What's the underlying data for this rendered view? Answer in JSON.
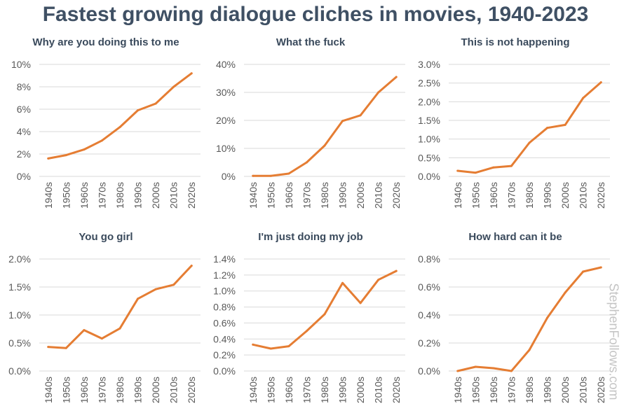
{
  "title": "Fastest growing dialogue cliches in movies, 1940-2023",
  "watermark": "StephenFollows.com",
  "colors": {
    "line": "#e57d33",
    "grid": "#d9d9d9",
    "title": "#3f5064",
    "text": "#595959"
  },
  "chart_data": [
    {
      "type": "line",
      "title": "Why are you doing this to me",
      "categories": [
        "1940s",
        "1950s",
        "1960s",
        "1970s",
        "1980s",
        "1990s",
        "2000s",
        "2010s",
        "2020s"
      ],
      "values": [
        1.6,
        1.9,
        2.4,
        3.2,
        4.4,
        5.9,
        6.5,
        8.0,
        9.2
      ],
      "ylim": [
        0,
        10
      ],
      "ytick_labels": [
        "0%",
        "2%",
        "4%",
        "6%",
        "8%",
        "10%"
      ],
      "grid": true
    },
    {
      "type": "line",
      "title": "What the fuck",
      "categories": [
        "1940s",
        "1950s",
        "1960s",
        "1970s",
        "1980s",
        "1990s",
        "2000s",
        "2010s",
        "2020s"
      ],
      "values": [
        0.2,
        0.2,
        1.0,
        5.0,
        11.0,
        19.8,
        21.8,
        30.0,
        35.5
      ],
      "ylim": [
        0,
        40
      ],
      "ytick_labels": [
        "0%",
        "10%",
        "20%",
        "30%",
        "40%"
      ],
      "grid": true
    },
    {
      "type": "line",
      "title": "This is not happening",
      "categories": [
        "1940s",
        "1950s",
        "1960s",
        "1970s",
        "1980s",
        "1990s",
        "2000s",
        "2010s",
        "2020s"
      ],
      "values": [
        0.15,
        0.1,
        0.24,
        0.28,
        0.9,
        1.3,
        1.38,
        2.1,
        2.52
      ],
      "ylim": [
        0,
        3
      ],
      "ytick_labels": [
        "0.0%",
        "0.5%",
        "1.0%",
        "1.5%",
        "2.0%",
        "2.5%",
        "3.0%"
      ],
      "grid": true
    },
    {
      "type": "line",
      "title": "You go girl",
      "categories": [
        "1940s",
        "1950s",
        "1960s",
        "1970s",
        "1980s",
        "1990s",
        "2000s",
        "2010s",
        "2020s"
      ],
      "values": [
        0.43,
        0.41,
        0.73,
        0.58,
        0.76,
        1.29,
        1.46,
        1.54,
        1.88
      ],
      "ylim": [
        0,
        2
      ],
      "ytick_labels": [
        "0.0%",
        "0.5%",
        "1.0%",
        "1.5%",
        "2.0%"
      ],
      "grid": true
    },
    {
      "type": "line",
      "title": "I'm just doing my job",
      "categories": [
        "1940s",
        "1950s",
        "1960s",
        "1970s",
        "1980s",
        "1990s",
        "2000s",
        "2010s",
        "2020s"
      ],
      "values": [
        0.33,
        0.28,
        0.31,
        0.5,
        0.71,
        1.1,
        0.85,
        1.14,
        1.25
      ],
      "ylim": [
        0,
        1.4
      ],
      "ytick_labels": [
        "0.0%",
        "0.2%",
        "0.4%",
        "0.6%",
        "0.8%",
        "1.0%",
        "1.2%",
        "1.4%"
      ],
      "grid": true
    },
    {
      "type": "line",
      "title": "How hard can it be",
      "categories": [
        "1940s",
        "1950s",
        "1960s",
        "1970s",
        "1980s",
        "1990s",
        "2000s",
        "2010s",
        "2020s"
      ],
      "values": [
        0.0,
        0.03,
        0.02,
        0.0,
        0.15,
        0.38,
        0.56,
        0.71,
        0.74
      ],
      "ylim": [
        0,
        0.8
      ],
      "ytick_labels": [
        "0.0%",
        "0.2%",
        "0.4%",
        "0.6%",
        "0.8%"
      ],
      "grid": true
    }
  ]
}
